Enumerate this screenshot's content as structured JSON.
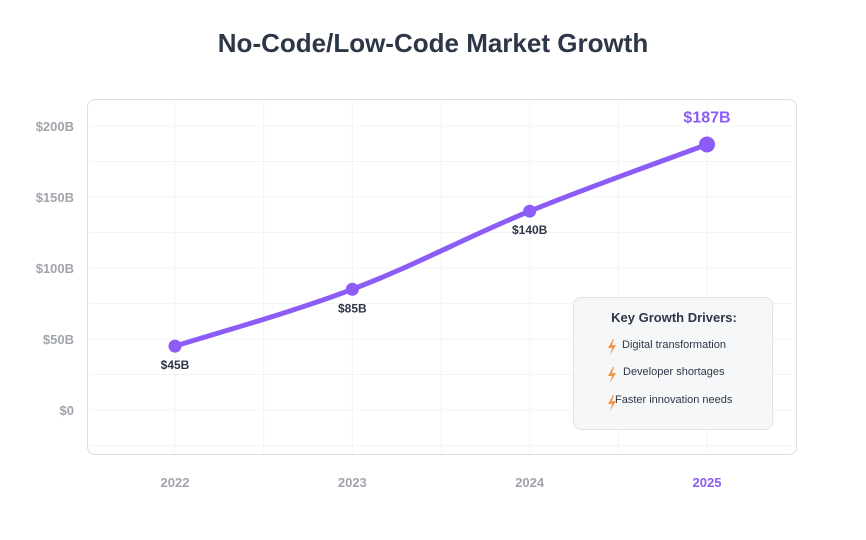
{
  "chart_data": {
    "type": "line",
    "title": "No-Code/Low-Code Market Growth",
    "x": [
      "2022",
      "2023",
      "2024",
      "2025"
    ],
    "series": [
      {
        "values": [
          45,
          85,
          140,
          187
        ],
        "labels": [
          "$45B",
          "$85B",
          "$140B",
          "$187B"
        ]
      }
    ],
    "y_ticks": [
      "$0",
      "$50B",
      "$100B",
      "$150B",
      "$200B"
    ],
    "y_tick_values": [
      0,
      50,
      100,
      150,
      200
    ],
    "highlight_x": "2025",
    "grid": true,
    "colors": {
      "line": "#8b5cf6",
      "highlight": "#8b5cf6",
      "axis_text": "#a0a4ab"
    }
  },
  "legend_box": {
    "title": "Key Growth Drivers:",
    "items": [
      {
        "icon": "lightning-icon",
        "label": "Digital transformation"
      },
      {
        "icon": "lightning-icon",
        "label": "Developer shortages"
      },
      {
        "icon": "lightning-icon",
        "label": "Faster innovation needs"
      }
    ]
  }
}
